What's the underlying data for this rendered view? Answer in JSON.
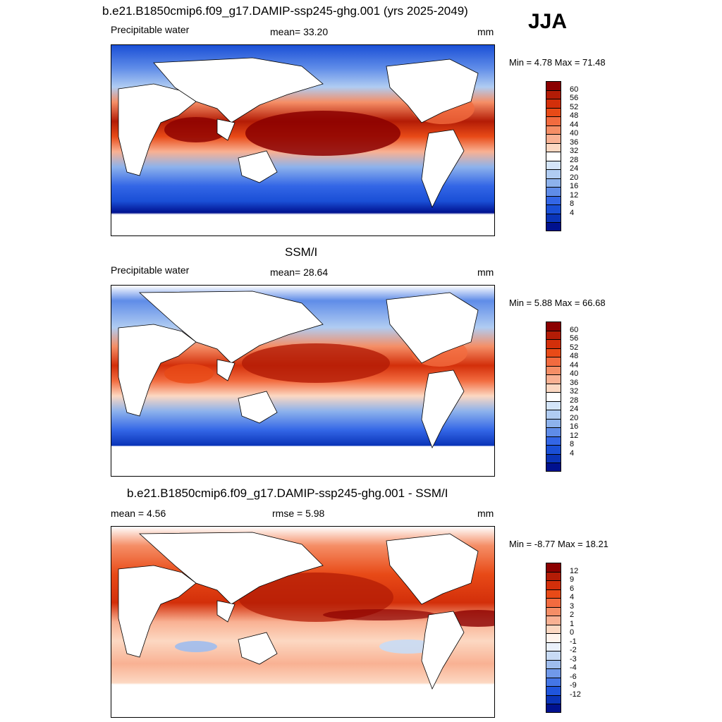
{
  "season": "JJA",
  "panels": [
    {
      "id": "model",
      "title": "b.e21.B1850cmip6.f09_g17.DAMIP-ssp245-ghg.001 (yrs 2025-2049)",
      "left_label": "Precipitable water",
      "center_label": "mean=  33.20",
      "units": "mm",
      "minmax": "Min =   4.78 Max =  71.48",
      "colorbar_ticks": [
        "60",
        "56",
        "52",
        "48",
        "44",
        "40",
        "36",
        "32",
        "28",
        "24",
        "20",
        "16",
        "12",
        "8",
        "4"
      ]
    },
    {
      "id": "obs",
      "title": "SSM/I",
      "left_label": "Precipitable water",
      "center_label": "mean=  28.64",
      "units": "mm",
      "minmax": "Min =   5.88 Max =  66.68",
      "colorbar_ticks": [
        "60",
        "56",
        "52",
        "48",
        "44",
        "40",
        "36",
        "32",
        "28",
        "24",
        "20",
        "16",
        "12",
        "8",
        "4"
      ]
    },
    {
      "id": "diff",
      "title": "b.e21.B1850cmip6.f09_g17.DAMIP-ssp245-ghg.001 - SSM/I",
      "left_label": "mean =   4.56",
      "center_label": "rmse =   5.98",
      "units": "mm",
      "minmax": "Min =  -8.77 Max =  18.21",
      "colorbar_ticks": [
        "12",
        "9",
        "6",
        "4",
        "3",
        "2",
        "1",
        "0",
        "-1",
        "-2",
        "-3",
        "-4",
        "-6",
        "-9",
        "-12"
      ]
    }
  ],
  "colors": {
    "abs_scale": [
      "#8b0000",
      "#b31c06",
      "#d32f0a",
      "#e84a17",
      "#f26b3f",
      "#f58e66",
      "#f9b193",
      "#fcd8c2",
      "#ffffff",
      "#d4e5f9",
      "#b0ccf2",
      "#8db2ec",
      "#5f8ce8",
      "#3366e6",
      "#1a4fd6",
      "#0a34b8",
      "#00118f"
    ],
    "diff_scale": [
      "#8b0000",
      "#b31c06",
      "#d32f0a",
      "#e84a17",
      "#f26b3f",
      "#f58e66",
      "#f9b193",
      "#fcd8c2",
      "#fff4ed",
      "#eaf1fb",
      "#c8dbf5",
      "#9fbdee",
      "#7099ea",
      "#4476e6",
      "#1f55dc",
      "#0a34b8",
      "#00118f"
    ],
    "land": "#ffffff",
    "coast": "#000000"
  }
}
